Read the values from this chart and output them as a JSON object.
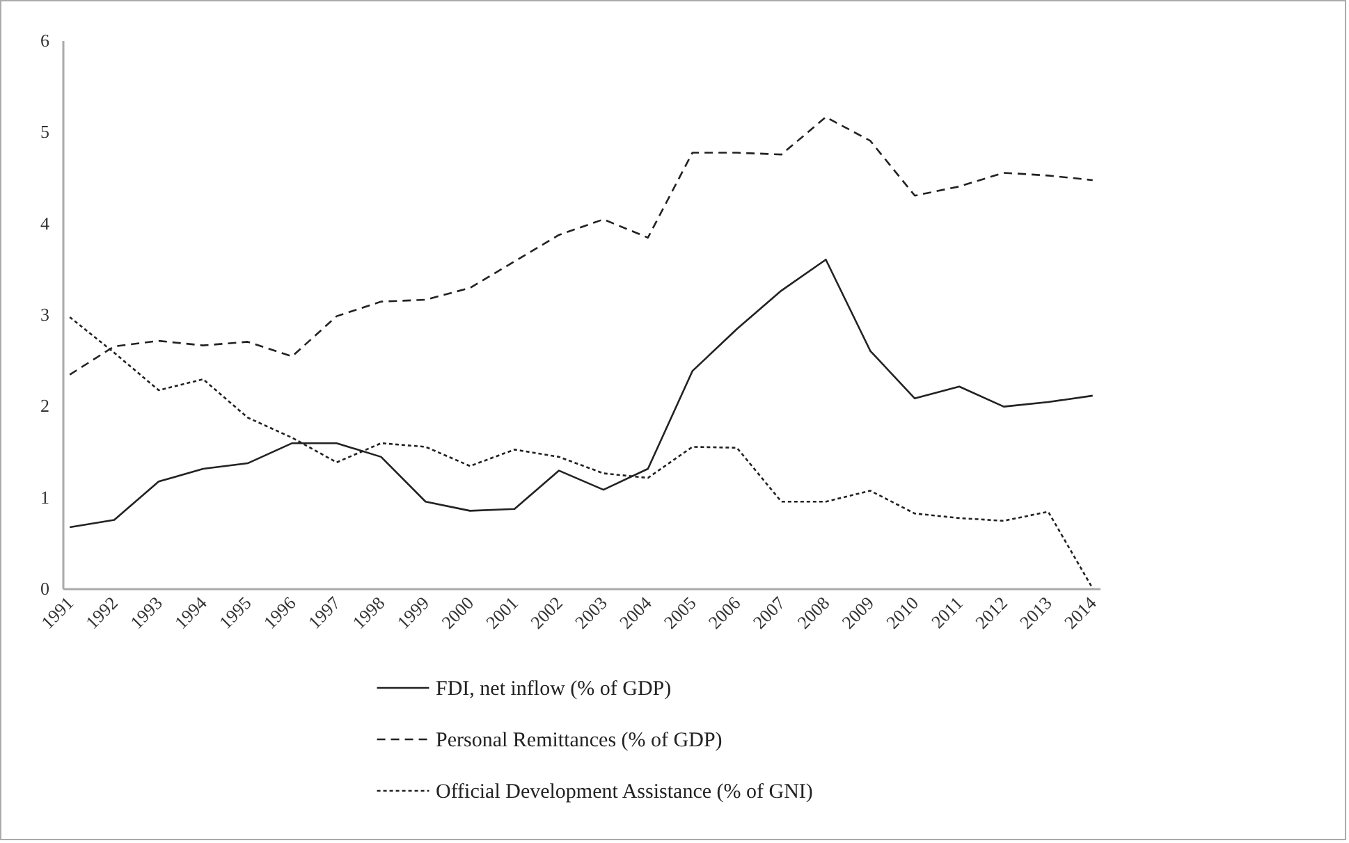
{
  "chart_data": {
    "type": "line",
    "categories": [
      "1991",
      "1992",
      "1993",
      "1994",
      "1995",
      "1996",
      "1997",
      "1998",
      "1999",
      "2000",
      "2001",
      "2002",
      "2003",
      "2004",
      "2005",
      "2006",
      "2007",
      "2008",
      "2009",
      "2010",
      "2011",
      "2012",
      "2013",
      "2014"
    ],
    "series": [
      {
        "name": "FDI, net inflow (% of GDP)",
        "color": "#222222",
        "line_style": "solid",
        "values": [
          0.67,
          0.75,
          1.17,
          1.31,
          1.37,
          1.59,
          1.59,
          1.44,
          0.95,
          0.85,
          0.87,
          1.29,
          1.08,
          1.31,
          2.38,
          2.84,
          3.26,
          3.6,
          2.6,
          2.08,
          2.21,
          1.99,
          2.04,
          2.11
        ]
      },
      {
        "name": "Personal Remittances (% of GDP)",
        "color": "#222222",
        "line_style": "dashed",
        "values": [
          2.34,
          2.65,
          2.71,
          2.66,
          2.7,
          2.54,
          2.98,
          3.14,
          3.16,
          3.29,
          3.58,
          3.87,
          4.04,
          3.84,
          4.77,
          4.77,
          4.75,
          5.16,
          4.9,
          4.3,
          4.4,
          4.55,
          4.52,
          4.47
        ]
      },
      {
        "name": "Official Development Assistance (% of GNI)",
        "color": "#222222",
        "line_style": "dotted",
        "values": [
          2.97,
          2.58,
          2.17,
          2.29,
          1.87,
          1.65,
          1.38,
          1.59,
          1.55,
          1.34,
          1.52,
          1.44,
          1.26,
          1.21,
          1.55,
          1.54,
          0.95,
          0.95,
          1.07,
          0.82,
          0.77,
          0.74,
          0.84,
          0.0
        ]
      }
    ],
    "ylim": [
      0,
      6
    ],
    "yticks": [
      0,
      1,
      2,
      3,
      4,
      5,
      6
    ],
    "grid": false,
    "legend": "bottom"
  }
}
